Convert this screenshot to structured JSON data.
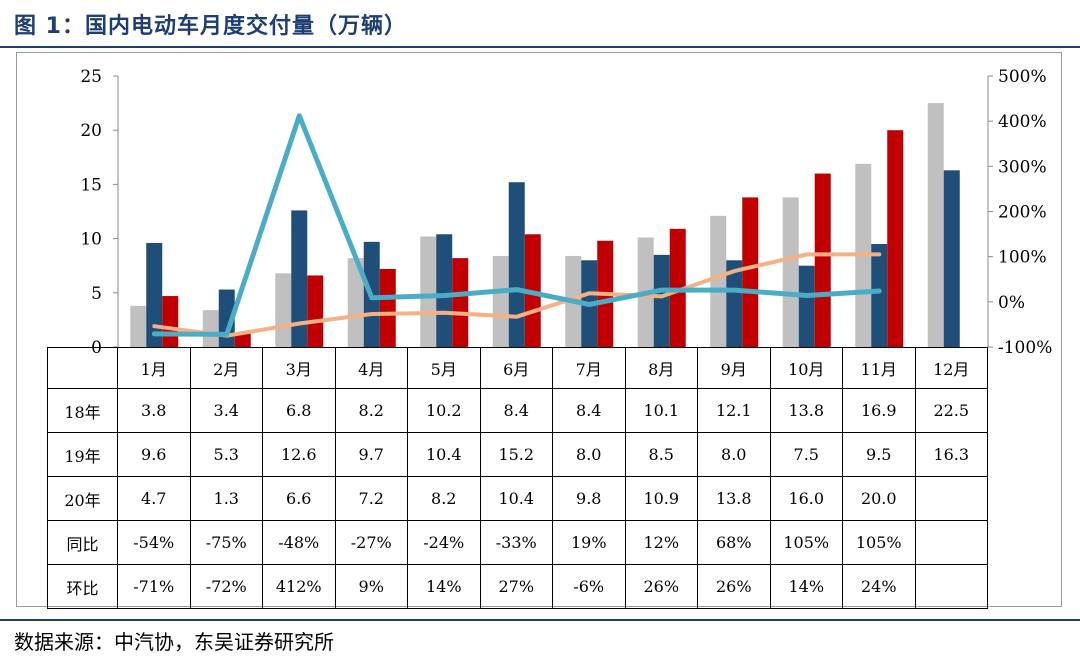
{
  "title": "图 1：国内电动车月度交付量（万辆）",
  "source": "数据来源：中汽协，东吴证券研究所",
  "colors": {
    "title": "#1f3f73",
    "s18": "#c0c0c0",
    "s19": "#1f4e79",
    "s20": "#c00000",
    "yoy": "#f4b183",
    "mom": "#4bacc6"
  },
  "chart_data": {
    "type": "bar",
    "categories": [
      "1月",
      "2月",
      "3月",
      "4月",
      "5月",
      "6月",
      "7月",
      "8月",
      "9月",
      "10月",
      "11月",
      "12月"
    ],
    "left_axis": {
      "ylim": [
        0,
        25
      ],
      "ticks": [
        "0",
        "5",
        "10",
        "15",
        "20",
        "25"
      ]
    },
    "right_axis": {
      "ylim": [
        -100,
        500
      ],
      "ticks": [
        "-100%",
        "0%",
        "100%",
        "200%",
        "300%",
        "400%",
        "500%"
      ]
    },
    "bar_series": [
      {
        "name": "18年",
        "values": [
          3.8,
          3.4,
          6.8,
          8.2,
          10.2,
          8.4,
          8.4,
          10.1,
          12.1,
          13.8,
          16.9,
          22.5
        ]
      },
      {
        "name": "19年",
        "values": [
          9.6,
          5.3,
          12.6,
          9.7,
          10.4,
          15.2,
          8.0,
          8.5,
          8.0,
          7.5,
          9.5,
          16.3
        ]
      },
      {
        "name": "20年",
        "values": [
          4.7,
          1.3,
          6.6,
          7.2,
          8.2,
          10.4,
          9.8,
          10.9,
          13.8,
          16.0,
          20.0,
          null
        ]
      }
    ],
    "line_series": [
      {
        "name": "同比",
        "values": [
          -54,
          -75,
          -48,
          -27,
          -24,
          -33,
          19,
          12,
          68,
          105,
          105,
          null
        ]
      },
      {
        "name": "环比",
        "values": [
          -71,
          -72,
          412,
          9,
          14,
          27,
          -6,
          26,
          26,
          14,
          24,
          null
        ]
      }
    ],
    "table_rows": [
      {
        "label": "18年",
        "cells": [
          "3.8",
          "3.4",
          "6.8",
          "8.2",
          "10.2",
          "8.4",
          "8.4",
          "10.1",
          "12.1",
          "13.8",
          "16.9",
          "22.5"
        ]
      },
      {
        "label": "19年",
        "cells": [
          "9.6",
          "5.3",
          "12.6",
          "9.7",
          "10.4",
          "15.2",
          "8.0",
          "8.5",
          "8.0",
          "7.5",
          "9.5",
          "16.3"
        ]
      },
      {
        "label": "20年",
        "cells": [
          "4.7",
          "1.3",
          "6.6",
          "7.2",
          "8.2",
          "10.4",
          "9.8",
          "10.9",
          "13.8",
          "16.0",
          "20.0",
          ""
        ]
      },
      {
        "label": "同比",
        "cells": [
          "-54%",
          "-75%",
          "-48%",
          "-27%",
          "-24%",
          "-33%",
          "19%",
          "12%",
          "68%",
          "105%",
          "105%",
          ""
        ]
      },
      {
        "label": "环比",
        "cells": [
          "-71%",
          "-72%",
          "412%",
          "9%",
          "14%",
          "27%",
          "-6%",
          "26%",
          "26%",
          "14%",
          "24%",
          ""
        ]
      }
    ]
  }
}
